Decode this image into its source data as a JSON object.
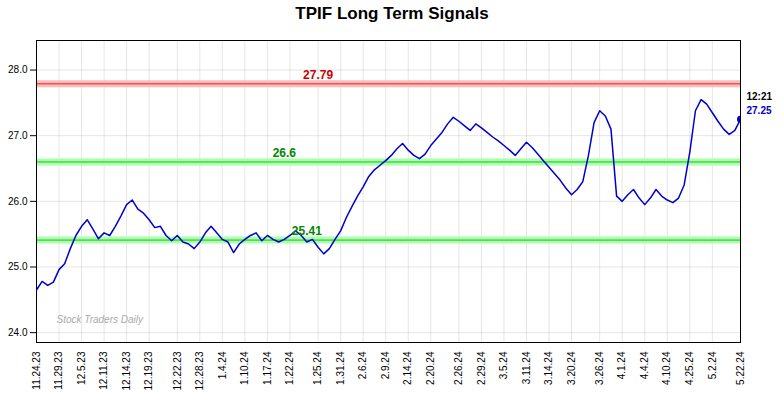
{
  "chart_data": {
    "type": "line",
    "title": "TPIF Long Term Signals",
    "grid": true,
    "ylim": [
      23.85,
      28.45
    ],
    "yticks": [
      24,
      25,
      26,
      27,
      28
    ],
    "categories": [
      "11.24.23",
      null,
      null,
      null,
      "11.29.23",
      null,
      null,
      null,
      "12.5.23",
      null,
      null,
      null,
      "12.11.23",
      null,
      null,
      null,
      "12.14.23",
      null,
      null,
      null,
      "12.19.23",
      null,
      null,
      null,
      null,
      "12.22.23",
      null,
      null,
      null,
      "12.28.23",
      null,
      null,
      null,
      "1.4.24",
      null,
      null,
      null,
      "1.10.24",
      null,
      null,
      null,
      "1.17.24",
      null,
      null,
      null,
      "1.22.24",
      null,
      null,
      null,
      null,
      "1.25.24",
      null,
      null,
      null,
      "1.31.24",
      null,
      null,
      null,
      "2.6.24",
      null,
      null,
      null,
      "2.9.24",
      null,
      null,
      null,
      "2.14.24",
      null,
      null,
      null,
      "2.20.24",
      null,
      null,
      null,
      null,
      "2.26.24",
      null,
      null,
      null,
      "2.29.24",
      null,
      null,
      null,
      "3.5.24",
      null,
      null,
      null,
      "3.11.24",
      null,
      null,
      null,
      "3.14.24",
      null,
      null,
      null,
      "3.20.24",
      null,
      null,
      null,
      null,
      "3.26.24",
      null,
      null,
      null,
      "4.1.24",
      null,
      null,
      null,
      "4.4.24",
      null,
      null,
      null,
      "4.10.24",
      null,
      null,
      null,
      "4.25.24",
      null,
      null,
      null,
      "5.2.24",
      null,
      null,
      null,
      null,
      "5.22.24"
    ],
    "color": "#0000cc",
    "values": [
      24.65,
      24.78,
      24.72,
      24.77,
      24.96,
      25.05,
      25.28,
      25.48,
      25.62,
      25.72,
      25.58,
      25.43,
      25.52,
      25.48,
      25.62,
      25.78,
      25.95,
      26.02,
      25.88,
      25.82,
      25.72,
      25.6,
      25.62,
      25.48,
      25.4,
      25.48,
      25.38,
      25.35,
      25.28,
      25.38,
      25.52,
      25.62,
      25.52,
      25.42,
      25.38,
      25.22,
      25.35,
      25.42,
      25.48,
      25.52,
      25.4,
      25.48,
      25.42,
      25.38,
      25.42,
      25.48,
      25.55,
      25.48,
      25.38,
      25.42,
      25.3,
      25.2,
      25.28,
      25.42,
      25.55,
      25.75,
      25.92,
      26.08,
      26.22,
      26.38,
      26.48,
      26.55,
      26.62,
      26.7,
      26.8,
      26.88,
      26.78,
      26.7,
      26.65,
      26.72,
      26.85,
      26.95,
      27.05,
      27.18,
      27.28,
      27.22,
      27.15,
      27.08,
      27.18,
      27.12,
      27.05,
      26.98,
      26.92,
      26.85,
      26.78,
      26.7,
      26.8,
      26.9,
      26.82,
      26.72,
      26.62,
      26.52,
      26.42,
      26.32,
      26.2,
      26.1,
      26.18,
      26.3,
      26.7,
      27.2,
      27.38,
      27.3,
      27.1,
      26.08,
      26.0,
      26.1,
      26.18,
      26.05,
      25.95,
      26.05,
      26.18,
      26.08,
      26.02,
      25.98,
      26.05,
      26.25,
      26.75,
      27.38,
      27.55,
      27.48,
      27.35,
      27.22,
      27.1,
      27.02,
      27.08,
      27.25
    ],
    "reference_lines": [
      {
        "value": 27.79,
        "label": "27.79",
        "color": "#cc0000",
        "band_color": "#ffbbbb",
        "label_color": "#cc0000"
      },
      {
        "value": 26.6,
        "label": "26.6",
        "color": "#00aa00",
        "band_color": "#aaffaa",
        "label_color": "#008800"
      },
      {
        "value": 25.41,
        "label": "25.41",
        "color": "#00aa00",
        "band_color": "#aaffaa",
        "label_color": "#008800"
      }
    ],
    "last_point_labels": [
      {
        "text": "12:21",
        "color": "#000000"
      },
      {
        "text": "27.25",
        "color": "#0000cc"
      }
    ],
    "watermark": {
      "text": "Stock Traders Daily",
      "color": "#aaaaaa"
    }
  }
}
